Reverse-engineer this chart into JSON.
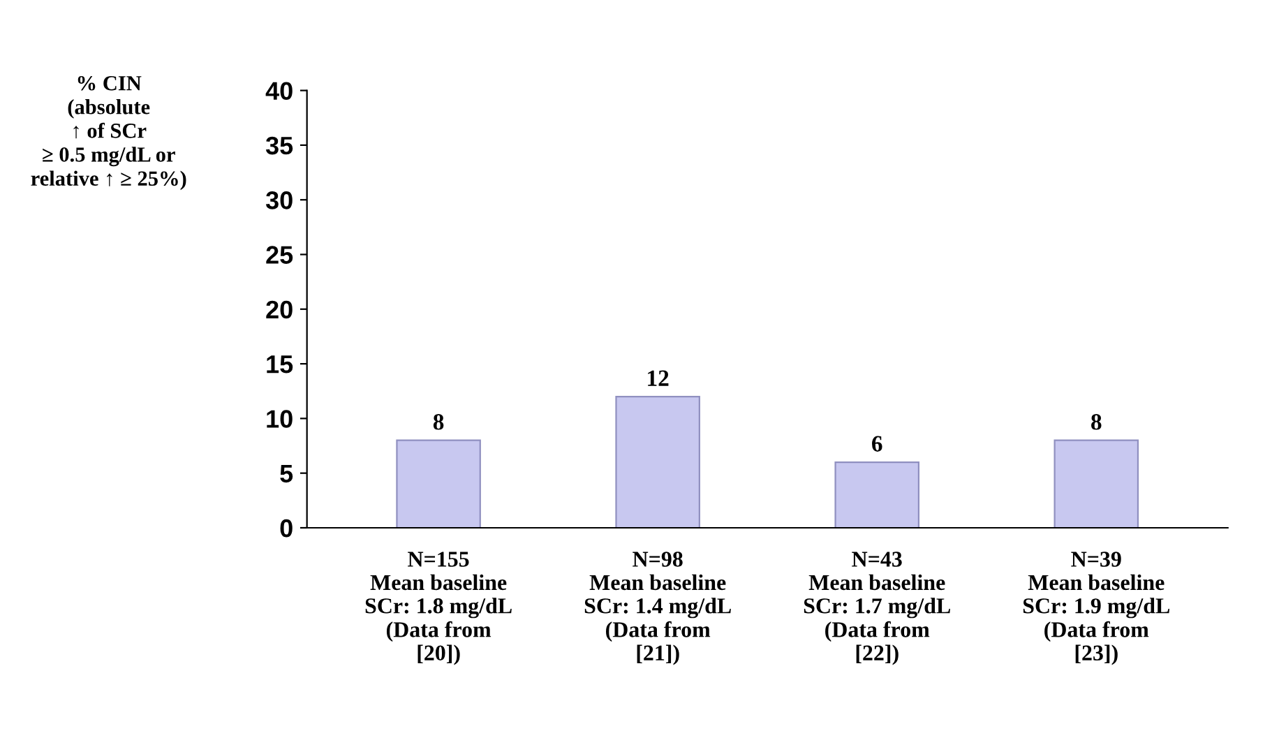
{
  "chart_data": {
    "type": "bar",
    "ylabel": "% CIN\n(absolute\n↑ of SCr\n≥ 0.5 mg/dL or\nrelative ↑ ≥ 25%)",
    "categories": [
      "N=155\nMean baseline\nSCr: 1.8 mg/dL\n(Data from\n[20])",
      "N=98\nMean baseline\nSCr: 1.4 mg/dL\n(Data from\n[21])",
      "N=43\nMean baseline\nSCr: 1.7 mg/dL\n(Data from\n[22])",
      "N=39\nMean baseline\nSCr: 1.9 mg/dL\n(Data from\n[23])"
    ],
    "values": [
      8,
      12,
      6,
      8
    ],
    "color": "#c8c8f0",
    "ylim": [
      0,
      40
    ],
    "yticks": [
      0,
      5,
      10,
      15,
      20,
      25,
      30,
      35,
      40
    ],
    "data_labels": true,
    "grid": false,
    "legend": false
  }
}
